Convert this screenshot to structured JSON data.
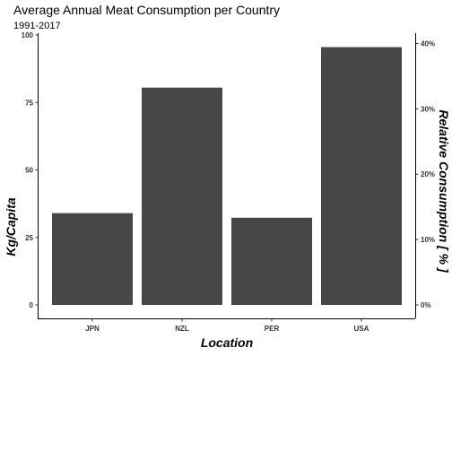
{
  "chart_data": {
    "type": "bar",
    "title": "Average Annual Meat Consumption per Country",
    "subtitle": "1991-2017",
    "categories": [
      "JPN",
      "NZL",
      "PER",
      "USA"
    ],
    "values": [
      34,
      80.5,
      32.3,
      95.5
    ],
    "xlabel": "Location",
    "ylabel": "Kg/Capita",
    "ylabel_right": "Relative Consumption [ % ]",
    "ylim": [
      0,
      100
    ],
    "y_ticks": [
      0,
      25,
      50,
      75,
      100
    ],
    "y_tick_labels": [
      "0",
      "25",
      "50",
      "75",
      "100"
    ],
    "y2_ticks": [
      0,
      10,
      20,
      30,
      40
    ],
    "y2_tick_labels": [
      "0%",
      "10%",
      "20%",
      "30%",
      "40%"
    ],
    "y2_max": 41.3,
    "grid": false,
    "bar_color": "#474747"
  }
}
